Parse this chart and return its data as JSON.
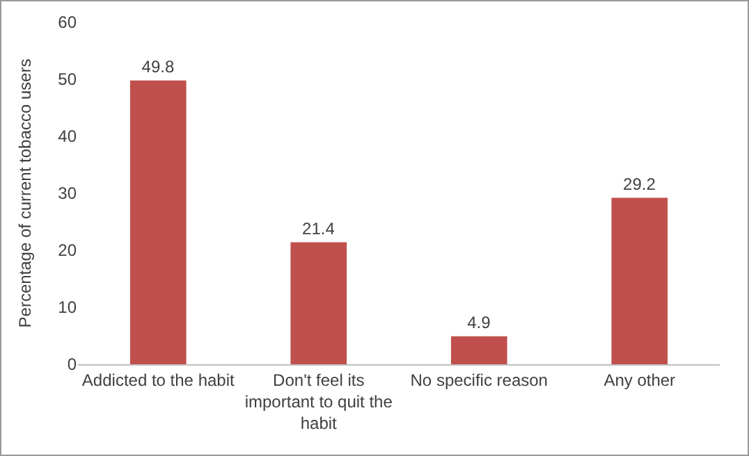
{
  "chart_data": {
    "type": "bar",
    "ylabel": "Percentage of current tobacco users",
    "categories": [
      "Addicted to the habit",
      "Don't feel its important to quit the habit",
      "No specific reason",
      "Any other"
    ],
    "values": [
      49.8,
      21.4,
      4.9,
      29.2
    ],
    "color": "#c0504d",
    "ylim": [
      0,
      60
    ],
    "yticks": [
      0,
      10,
      20,
      30,
      40,
      50,
      60
    ],
    "grid": false,
    "data_labels": true
  }
}
